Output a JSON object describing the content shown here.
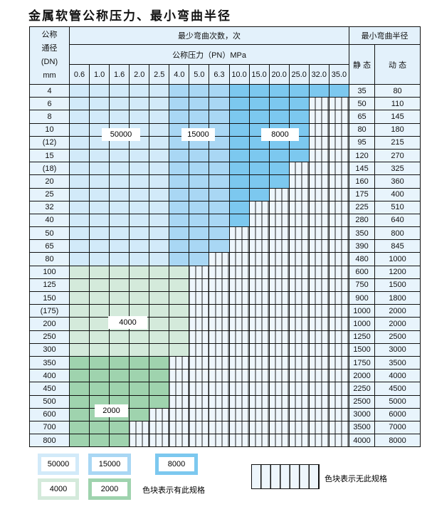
{
  "title": "金属软管公称压力、最小弯曲半径",
  "header": {
    "dn_label": [
      "公称",
      "通径",
      "(DN)",
      "mm"
    ],
    "cycles_label": "最少弯曲次数，次",
    "pressure_label": "公称压力（PN）MPa",
    "radius_label": "最小弯曲半径",
    "static_label": "静 态",
    "dynamic_label": "动 态",
    "pressures": [
      "0.6",
      "1.0",
      "1.6",
      "2.0",
      "2.5",
      "4.0",
      "5.0",
      "6.3",
      "10.0",
      "15.0",
      "20.0",
      "25.0",
      "32.0",
      "35.0"
    ]
  },
  "colors": {
    "50000": "#d2eaf9",
    "15000": "#a9d7f4",
    "8000": "#7cc8ef",
    "4000": "#d4eadb",
    "2000": "#9fd3ae"
  },
  "rows": [
    {
      "dn": "4",
      "static": "35",
      "dynamic": "80",
      "available": 14,
      "group": "blue"
    },
    {
      "dn": "6",
      "static": "50",
      "dynamic": "110",
      "available": 12,
      "group": "blue"
    },
    {
      "dn": "8",
      "static": "65",
      "dynamic": "145",
      "available": 12,
      "group": "blue"
    },
    {
      "dn": "10",
      "static": "80",
      "dynamic": "180",
      "available": 12,
      "group": "blue"
    },
    {
      "dn": "(12)",
      "static": "95",
      "dynamic": "215",
      "available": 12,
      "group": "blue"
    },
    {
      "dn": "15",
      "static": "120",
      "dynamic": "270",
      "available": 12,
      "group": "blue"
    },
    {
      "dn": "(18)",
      "static": "145",
      "dynamic": "325",
      "available": 11,
      "group": "blue"
    },
    {
      "dn": "20",
      "static": "160",
      "dynamic": "360",
      "available": 11,
      "group": "blue"
    },
    {
      "dn": "25",
      "static": "175",
      "dynamic": "400",
      "available": 10,
      "group": "blue"
    },
    {
      "dn": "32",
      "static": "225",
      "dynamic": "510",
      "available": 9,
      "group": "blue"
    },
    {
      "dn": "40",
      "static": "280",
      "dynamic": "640",
      "available": 9,
      "group": "blue"
    },
    {
      "dn": "50",
      "static": "350",
      "dynamic": "800",
      "available": 8,
      "group": "blue"
    },
    {
      "dn": "65",
      "static": "390",
      "dynamic": "845",
      "available": 8,
      "group": "blue"
    },
    {
      "dn": "80",
      "static": "480",
      "dynamic": "1000",
      "available": 7,
      "group": "blue"
    },
    {
      "dn": "100",
      "static": "600",
      "dynamic": "1200",
      "available": 6,
      "group": "4000"
    },
    {
      "dn": "125",
      "static": "750",
      "dynamic": "1500",
      "available": 6,
      "group": "4000"
    },
    {
      "dn": "150",
      "static": "900",
      "dynamic": "1800",
      "available": 6,
      "group": "4000"
    },
    {
      "dn": "(175)",
      "static": "1000",
      "dynamic": "2000",
      "available": 6,
      "group": "4000"
    },
    {
      "dn": "200",
      "static": "1000",
      "dynamic": "2000",
      "available": 6,
      "group": "4000"
    },
    {
      "dn": "250",
      "static": "1250",
      "dynamic": "2500",
      "available": 6,
      "group": "4000"
    },
    {
      "dn": "300",
      "static": "1500",
      "dynamic": "3000",
      "available": 6,
      "group": "4000"
    },
    {
      "dn": "350",
      "static": "1750",
      "dynamic": "3500",
      "available": 5,
      "group": "2000"
    },
    {
      "dn": "400",
      "static": "2000",
      "dynamic": "4000",
      "available": 5,
      "group": "2000"
    },
    {
      "dn": "450",
      "static": "2250",
      "dynamic": "4500",
      "available": 5,
      "group": "2000"
    },
    {
      "dn": "500",
      "static": "2500",
      "dynamic": "5000",
      "available": 5,
      "group": "2000"
    },
    {
      "dn": "600",
      "static": "3000",
      "dynamic": "6000",
      "available": 4,
      "group": "2000"
    },
    {
      "dn": "700",
      "static": "3500",
      "dynamic": "7000",
      "available": 3,
      "group": "2000"
    },
    {
      "dn": "800",
      "static": "4000",
      "dynamic": "8000",
      "available": 3,
      "group": "2000"
    }
  ],
  "zone_labels": {
    "z50000": "50000",
    "z15000": "15000",
    "z8000": "8000",
    "z4000": "4000",
    "z2000": "2000"
  },
  "legend": {
    "items": [
      "50000",
      "15000",
      "8000",
      "4000",
      "2000"
    ],
    "has_spec_text": "色块表示有此规格",
    "no_spec_text": "色块表示无此规格"
  }
}
